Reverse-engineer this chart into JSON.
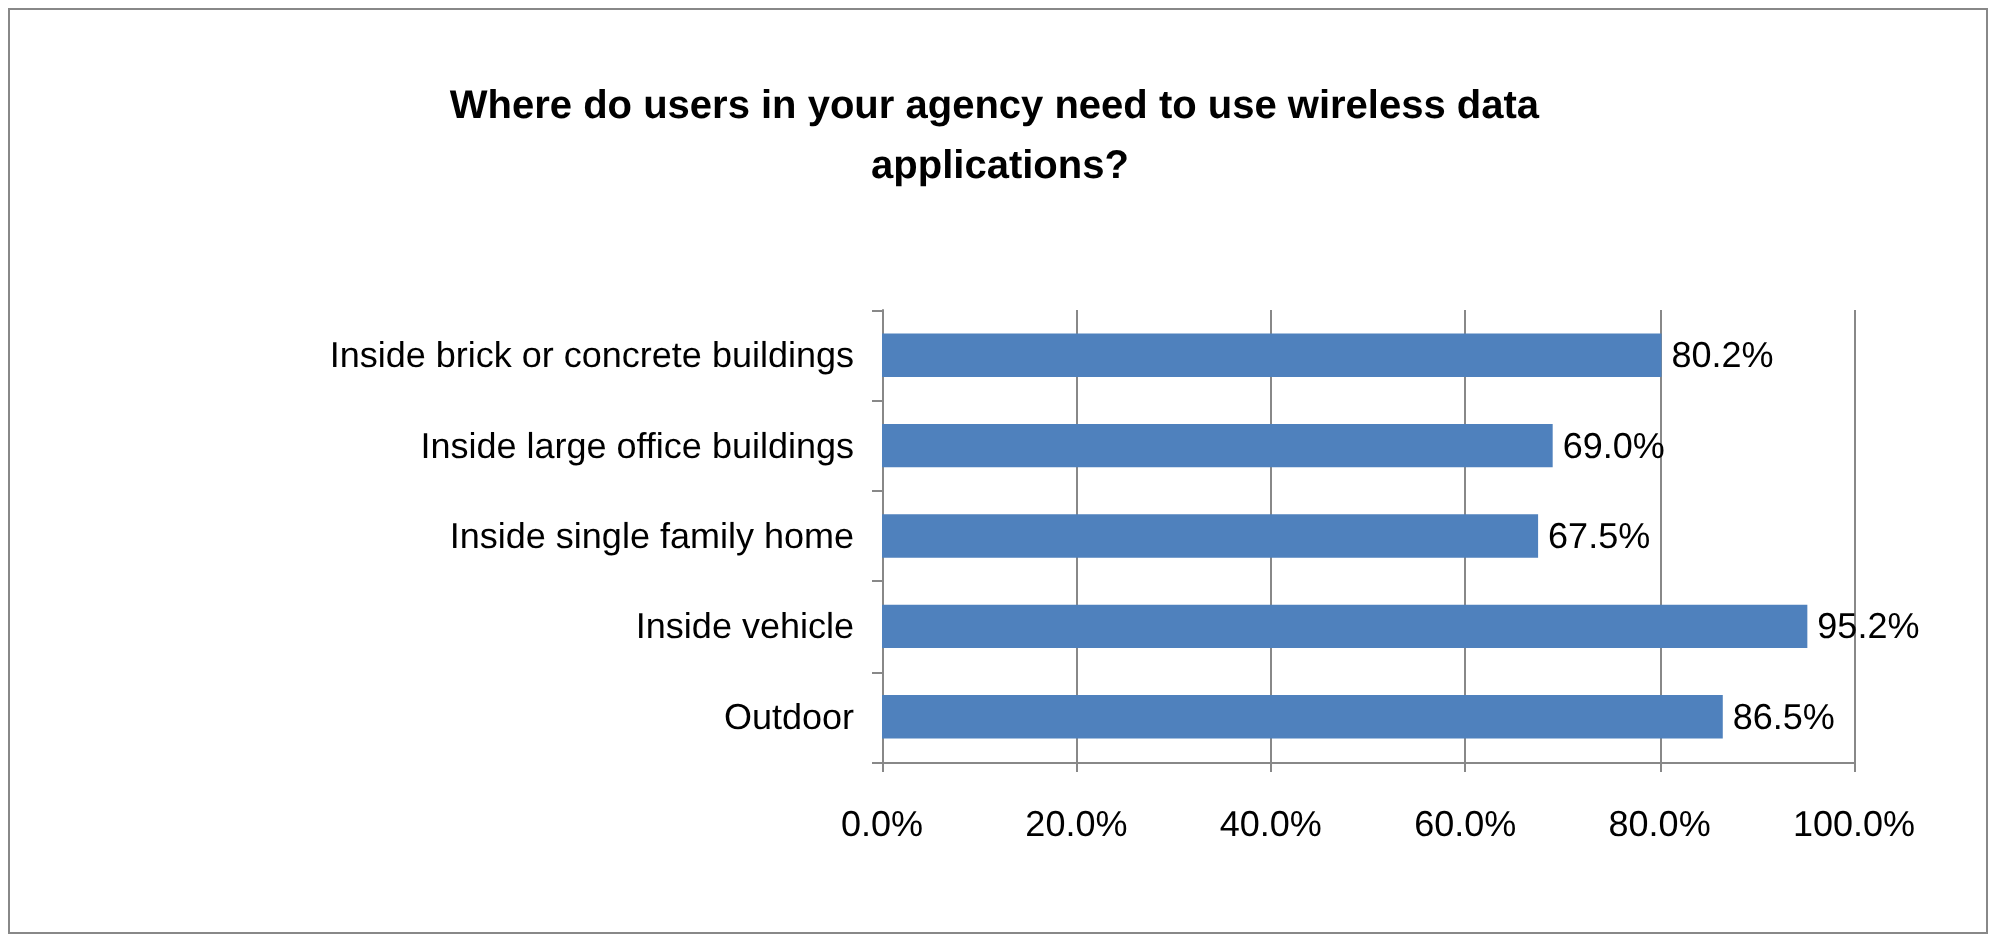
{
  "chart_data": {
    "type": "bar",
    "orientation": "horizontal",
    "title": "Where do users in your agency need to use wireless data applications?",
    "categories": [
      "Inside brick or concrete buildings",
      "Inside large office buildings",
      "Inside single family home",
      "Inside vehicle",
      "Outdoor"
    ],
    "values": [
      80.2,
      69.0,
      67.5,
      95.2,
      86.5
    ],
    "value_labels": [
      "80.2%",
      "69.0%",
      "67.5%",
      "95.2%",
      "86.5%"
    ],
    "color": "#4f81bd",
    "xlim": [
      0,
      100
    ],
    "xticks": [
      {
        "value": 0,
        "label": "0.0%"
      },
      {
        "value": 20,
        "label": "20.0%"
      },
      {
        "value": 40,
        "label": "40.0%"
      },
      {
        "value": 60,
        "label": "60.0%"
      },
      {
        "value": 80,
        "label": "80.0%"
      },
      {
        "value": 100,
        "label": "100.0%"
      }
    ],
    "grid": "x"
  }
}
